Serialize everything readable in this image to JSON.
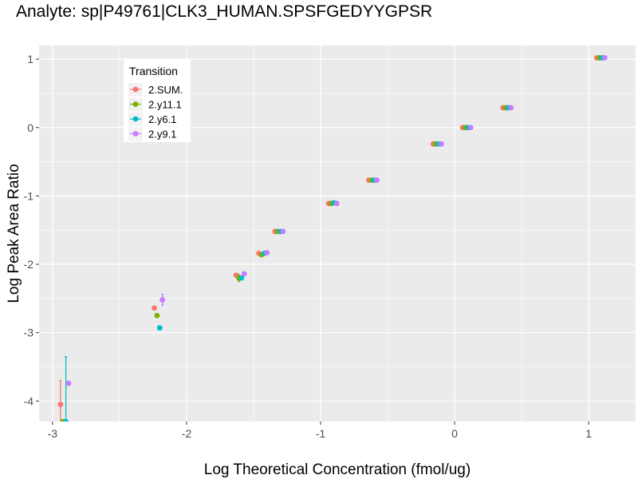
{
  "chart_data": {
    "type": "scatter",
    "title": "Analyte: sp|P49761|CLK3_HUMAN.SPSFGEDYYGPSR",
    "xlabel": "Log Theoretical Concentration (fmol/ug)",
    "ylabel": "Log Peak Area Ratio",
    "xlim": [
      -3.1,
      1.35
    ],
    "ylim": [
      -4.3,
      1.2
    ],
    "x_ticks": [
      -3,
      -2,
      -1,
      0,
      1
    ],
    "y_ticks": [
      -4,
      -3,
      -2,
      -1,
      0,
      1
    ],
    "grid": true,
    "legend_title": "Transition",
    "legend_position": "top-left",
    "series": [
      {
        "name": "2.SUM.",
        "color": "#F8766D",
        "dodge": -0.03,
        "x": [
          -2.91,
          -2.21,
          -1.6,
          -1.43,
          -1.31,
          -0.91,
          -0.61,
          -0.13,
          0.09,
          0.39,
          1.09
        ],
        "y": [
          -4.05,
          -2.64,
          -2.16,
          -1.84,
          -1.52,
          -1.11,
          -0.77,
          -0.24,
          0.0,
          0.29,
          1.02
        ],
        "err": [
          0.35,
          0.0,
          0.0,
          0.0,
          0.0,
          0.0,
          0.0,
          0.0,
          0.0,
          0.0,
          0.0
        ]
      },
      {
        "name": "2.y11.1",
        "color": "#7CAE00",
        "dodge": -0.01,
        "x": [
          -2.91,
          -2.21,
          -1.6,
          -1.43,
          -1.31,
          -0.91,
          -0.61,
          -0.13,
          0.09,
          0.39,
          1.09
        ],
        "y": [
          -4.3,
          -2.75,
          -2.2,
          -1.86,
          -1.52,
          -1.11,
          -0.77,
          -0.24,
          0.0,
          0.29,
          1.02
        ],
        "err": [
          0.0,
          0.0,
          0.05,
          0.0,
          0.0,
          0.0,
          0.0,
          0.0,
          0.0,
          0.0,
          0.0
        ]
      },
      {
        "name": "2.y6.1",
        "color": "#00BFC4",
        "dodge": 0.01,
        "x": [
          -2.91,
          -2.21,
          -1.6,
          -1.43,
          -1.31,
          -0.91,
          -0.61,
          -0.13,
          0.09,
          0.39,
          1.09
        ],
        "y": [
          -4.3,
          -2.93,
          -2.2,
          -1.84,
          -1.52,
          -1.1,
          -0.77,
          -0.24,
          0.0,
          0.29,
          1.02
        ],
        "err": [
          0.95,
          0.0,
          0.0,
          0.0,
          0.0,
          0.0,
          0.0,
          0.0,
          0.0,
          0.0,
          0.0
        ]
      },
      {
        "name": "2.y9.1",
        "color": "#C77CFF",
        "dodge": 0.03,
        "x": [
          -2.91,
          -2.21,
          -1.6,
          -1.43,
          -1.31,
          -0.91,
          -0.61,
          -0.13,
          0.09,
          0.39,
          1.09
        ],
        "y": [
          -3.74,
          -2.52,
          -2.14,
          -1.83,
          -1.52,
          -1.11,
          -0.77,
          -0.24,
          0.0,
          0.29,
          1.02
        ],
        "err": [
          0.0,
          0.08,
          0.0,
          0.0,
          0.0,
          0.0,
          0.0,
          0.0,
          0.0,
          0.0,
          0.0
        ]
      }
    ]
  }
}
